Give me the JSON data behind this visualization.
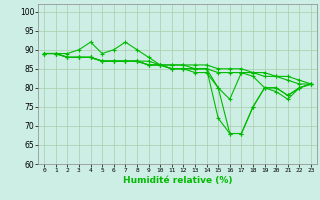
{
  "title": "",
  "xlabel": "Humidité relative (%)",
  "ylabel": "",
  "background_color": "#cceee4",
  "grid_color": "#aaccaa",
  "line_color": "#00bb00",
  "xlim": [
    -0.5,
    23.5
  ],
  "ylim": [
    60,
    102
  ],
  "yticks": [
    60,
    65,
    70,
    75,
    80,
    85,
    90,
    95,
    100
  ],
  "xtick_labels": [
    "0",
    "1",
    "2",
    "3",
    "4",
    "5",
    "6",
    "7",
    "8",
    "9",
    "10",
    "11",
    "12",
    "13",
    "14",
    "15",
    "16",
    "17",
    "18",
    "19",
    "20",
    "21",
    "22",
    "23"
  ],
  "series": [
    [
      89,
      89,
      89,
      90,
      92,
      89,
      90,
      92,
      90,
      88,
      86,
      85,
      85,
      84,
      84,
      80,
      77,
      84,
      83,
      80,
      79,
      77,
      80,
      81
    ],
    [
      89,
      89,
      88,
      88,
      88,
      87,
      87,
      87,
      87,
      86,
      86,
      86,
      86,
      86,
      86,
      85,
      85,
      85,
      84,
      84,
      83,
      83,
      82,
      81
    ],
    [
      89,
      89,
      88,
      88,
      88,
      87,
      87,
      87,
      87,
      87,
      86,
      86,
      86,
      85,
      85,
      84,
      84,
      84,
      84,
      83,
      83,
      82,
      81,
      81
    ],
    [
      89,
      89,
      88,
      88,
      88,
      87,
      87,
      87,
      87,
      86,
      86,
      85,
      85,
      85,
      85,
      72,
      68,
      68,
      75,
      80,
      80,
      78,
      80,
      81
    ],
    [
      89,
      89,
      88,
      88,
      88,
      87,
      87,
      87,
      87,
      86,
      86,
      85,
      85,
      85,
      85,
      80,
      68,
      68,
      75,
      80,
      80,
      78,
      80,
      81
    ]
  ]
}
